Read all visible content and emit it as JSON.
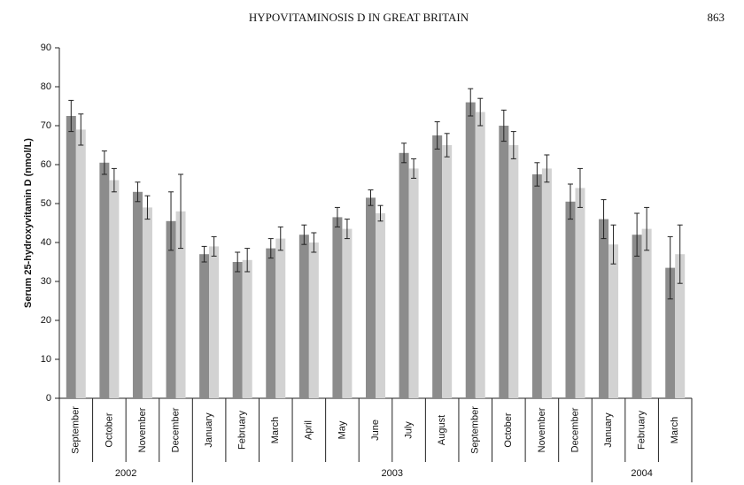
{
  "header": {
    "title": "HYPOVITAMINOSIS D IN GREAT BRITAIN",
    "page": "863"
  },
  "chart_data": {
    "type": "bar",
    "y_label": "Serum 25-hydroxyvitamin D (nmol/L)",
    "categories": [
      "September",
      "October",
      "November",
      "December",
      "January",
      "February",
      "March",
      "April",
      "May",
      "June",
      "July",
      "August",
      "September",
      "October",
      "November",
      "December",
      "January",
      "February",
      "March"
    ],
    "year_labels": [
      "2002",
      "2003",
      "2004"
    ],
    "series": [
      {
        "color": "#8c8c8c",
        "values": [
          72.5,
          60.5,
          53,
          45.5,
          37,
          35,
          38.5,
          42,
          46.5,
          51.5,
          63,
          67.5,
          76,
          70,
          57.5,
          50.5,
          46,
          42,
          33.5
        ],
        "errors": [
          4,
          3,
          2.5,
          7.5,
          2,
          2.5,
          2.5,
          2.5,
          2.5,
          2,
          2.5,
          3.5,
          3.5,
          4,
          3,
          4.5,
          5,
          5.5,
          8
        ]
      },
      {
        "color": "#d2d2d2",
        "values": [
          69,
          56,
          49,
          48,
          39,
          35.5,
          41,
          40,
          43.5,
          47.5,
          59,
          65,
          73.5,
          65,
          59,
          54,
          39.5,
          43.5,
          37
        ],
        "errors": [
          4,
          3,
          3,
          9.5,
          2.5,
          3,
          3,
          2.5,
          2.5,
          2,
          2.5,
          3,
          3.5,
          3.5,
          3.5,
          5,
          5,
          5.5,
          7.5
        ]
      }
    ],
    "ylim": [
      0,
      90
    ],
    "yticks": [
      0,
      10,
      20,
      30,
      40,
      50,
      60,
      70,
      80,
      90
    ]
  }
}
